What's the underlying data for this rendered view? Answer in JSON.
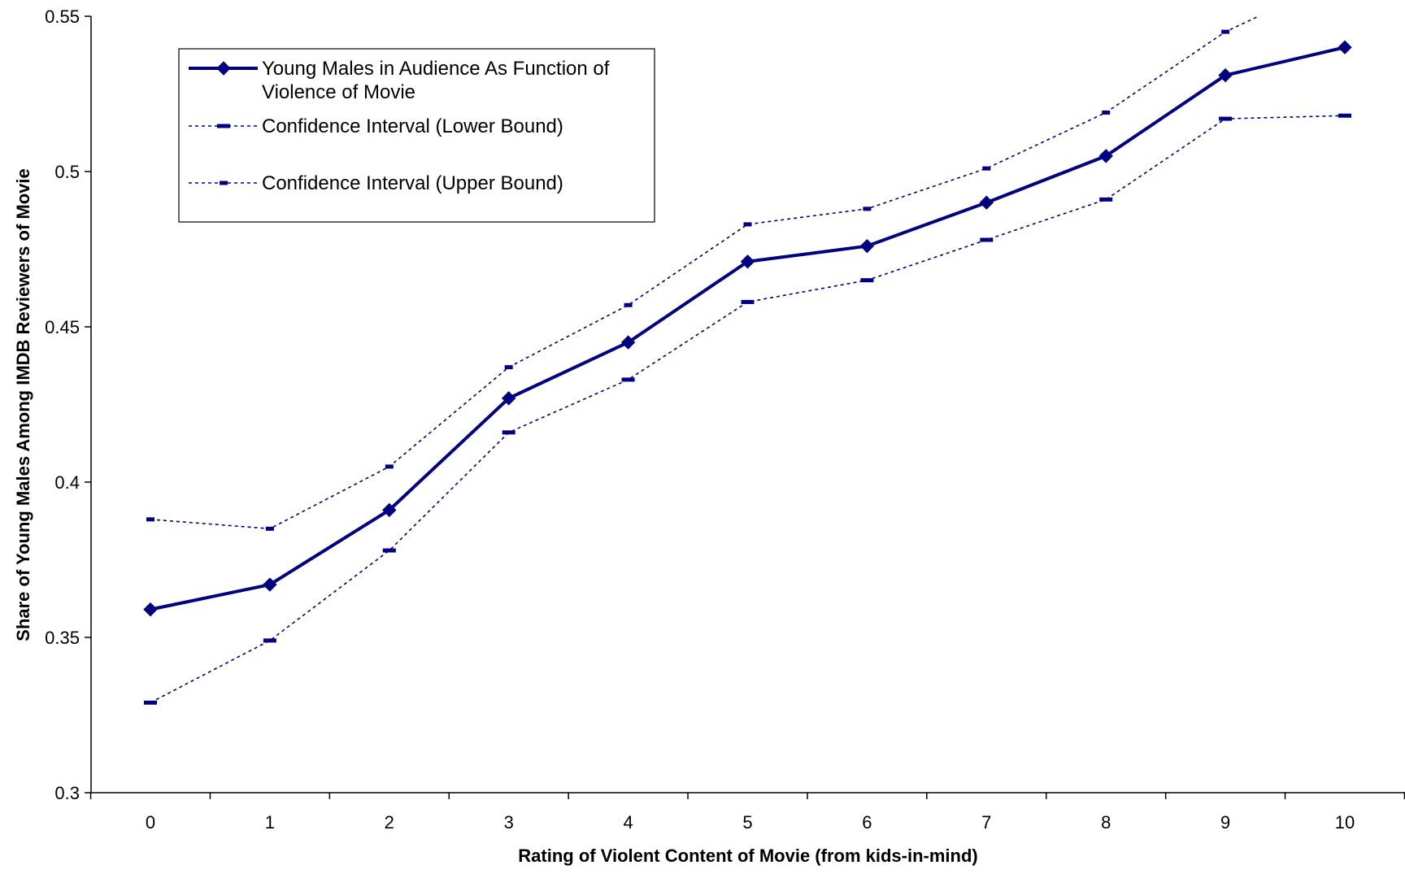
{
  "chart_data": {
    "type": "line",
    "title": "",
    "xlabel": "Rating of Violent Content of Movie (from kids-in-mind)",
    "ylabel": "Share of Young Males Among IMDB Reviewers of Movie",
    "x": [
      0,
      1,
      2,
      3,
      4,
      5,
      6,
      7,
      8,
      9,
      10
    ],
    "xlim": [
      0,
      10
    ],
    "ylim": [
      0.3,
      0.55
    ],
    "y_ticks": [
      0.3,
      0.35,
      0.4,
      0.45,
      0.5,
      0.55
    ],
    "y_tick_labels": [
      "0.3",
      "0.35",
      "0.4",
      "0.45",
      "0.5",
      "0.55"
    ],
    "x_tick_labels": [
      "0",
      "1",
      "2",
      "3",
      "4",
      "5",
      "6",
      "7",
      "8",
      "9",
      "10"
    ],
    "grid": false,
    "legend": "top-left",
    "series": [
      {
        "name": "Young Males in Audience As Function of Violence of Movie",
        "name_lines": [
          "Young Males in Audience As Function of",
          "Violence of Movie"
        ],
        "style": "solid-diamond",
        "color": "#000080",
        "values": [
          0.359,
          0.367,
          0.391,
          0.427,
          0.445,
          0.471,
          0.476,
          0.49,
          0.505,
          0.531,
          0.54
        ]
      },
      {
        "name": "Confidence Interval (Lower Bound)",
        "name_lines": [
          "Confidence Interval (Lower Bound)"
        ],
        "style": "dash-long",
        "color": "#000080",
        "values": [
          0.329,
          0.349,
          0.378,
          0.416,
          0.433,
          0.458,
          0.465,
          0.478,
          0.491,
          0.517,
          0.518
        ]
      },
      {
        "name": "Confidence Interval (Upper Bound)",
        "name_lines": [
          "Confidence Interval (Upper Bound)"
        ],
        "style": "dash-short",
        "color": "#000080",
        "values": [
          0.388,
          0.385,
          0.405,
          0.437,
          0.457,
          0.483,
          0.488,
          0.501,
          0.519,
          0.545,
          0.563
        ]
      }
    ]
  }
}
